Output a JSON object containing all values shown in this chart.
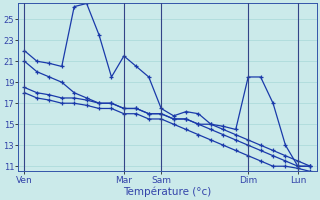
{
  "background_color": "#cbeaea",
  "grid_color": "#a8d8d8",
  "line_color": "#1a3aaa",
  "xlabel": "Température (°c)",
  "ylim": [
    10.5,
    26.5
  ],
  "yticks": [
    11,
    13,
    15,
    17,
    19,
    21,
    23,
    25
  ],
  "day_labels": [
    "Ven",
    "Mar",
    "Sam",
    "Dim",
    "Lun"
  ],
  "day_x": [
    0,
    8,
    11,
    18,
    22
  ],
  "n_points": 24,
  "series1": [
    22.0,
    21.0,
    20.8,
    20.5,
    26.2,
    26.5,
    23.5,
    19.5,
    21.5,
    20.5,
    19.5,
    16.5,
    15.8,
    16.2,
    16.0,
    15.0,
    14.8,
    14.5,
    19.5,
    19.5,
    17.0,
    13.0,
    11.0,
    11.0
  ],
  "series2": [
    21.0,
    20.0,
    19.5,
    19.0,
    18.0,
    17.5,
    17.0,
    17.0,
    16.5,
    16.5,
    16.0,
    16.0,
    15.5,
    15.5,
    15.0,
    15.0,
    14.5,
    14.0,
    13.5,
    13.0,
    12.5,
    12.0,
    11.5,
    11.0
  ],
  "series3": [
    18.5,
    18.0,
    17.8,
    17.5,
    17.5,
    17.3,
    17.0,
    17.0,
    16.5,
    16.5,
    16.0,
    16.0,
    15.5,
    15.5,
    15.0,
    14.5,
    14.0,
    13.5,
    13.0,
    12.5,
    12.0,
    11.5,
    11.0,
    11.0
  ],
  "series4": [
    18.0,
    17.5,
    17.3,
    17.0,
    17.0,
    16.8,
    16.5,
    16.5,
    16.0,
    16.0,
    15.5,
    15.5,
    15.0,
    14.5,
    14.0,
    13.5,
    13.0,
    12.5,
    12.0,
    11.5,
    11.0,
    11.0,
    10.8,
    10.5
  ]
}
